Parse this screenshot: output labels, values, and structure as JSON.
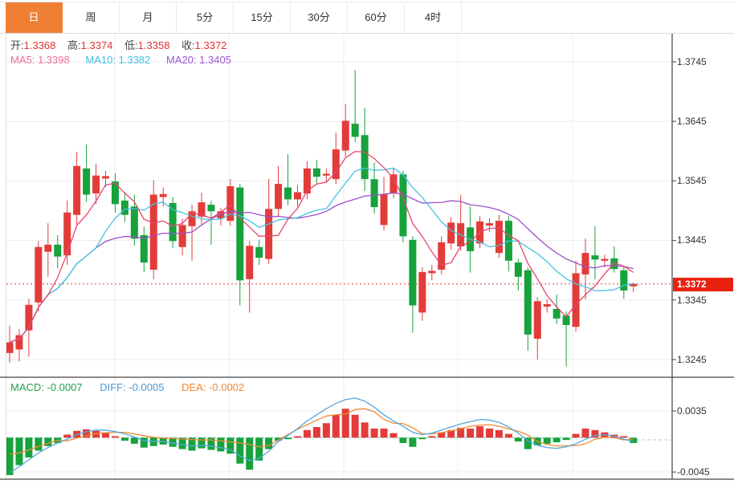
{
  "toolbar": {
    "tabs": [
      {
        "label": "日",
        "active": true
      },
      {
        "label": "周",
        "active": false
      },
      {
        "label": "月",
        "active": false
      },
      {
        "label": "5分",
        "active": false
      },
      {
        "label": "15分",
        "active": false
      },
      {
        "label": "30分",
        "active": false
      },
      {
        "label": "60分",
        "active": false
      },
      {
        "label": "4时",
        "active": false
      }
    ]
  },
  "info": {
    "open_label": "开:",
    "open": "1.3368",
    "high_label": "高:",
    "high": "1.3374",
    "low_label": "低:",
    "low": "1.3358",
    "close_label": "收:",
    "close": "1.3372",
    "ma5_label": "MA5:",
    "ma5": "1.3398",
    "ma10_label": "MA10:",
    "ma10": "1.3382",
    "ma20_label": "MA20:",
    "ma20": "1.3405"
  },
  "macd_info": {
    "macd_label": "MACD:",
    "macd": "-0.0007",
    "diff_label": "DIFF:",
    "diff": "-0.0005",
    "dea_label": "DEA:",
    "dea": "-0.0002"
  },
  "price_axis": {
    "ticks": [
      "1.3745",
      "1.3645",
      "1.3545",
      "1.3445",
      "1.3345",
      "1.3245"
    ],
    "current_tag": "1.3372"
  },
  "macd_axis": {
    "ticks": [
      "0.0035",
      "-0.0045"
    ]
  },
  "colors": {
    "up": "#e23c3a",
    "down": "#17a23c",
    "ma5": "#e74470",
    "ma10": "#45c2e2",
    "ma20": "#9c50c8",
    "diff_line": "#55a7dd",
    "dea_line": "#ef8a35",
    "zero_line": "#72c8be",
    "ext_line": "#a5cde8",
    "price_line": "#e23c3a",
    "tag_bg": "#e8220f",
    "tab_active_bg": "#ef8033",
    "grid": "#ececec",
    "axis": "#444444",
    "ohlc_value": "#e03232",
    "label_ma5": "#ef6f9a",
    "label_ma10": "#3fc0e0",
    "label_ma20": "#a055d5",
    "label_macd": "#23a24b",
    "label_diff": "#4b9ad9",
    "label_dea": "#f0862e"
  },
  "chart_data": {
    "type": "candlestick",
    "title": "",
    "legend": [
      "MA5",
      "MA10",
      "MA20",
      "MACD",
      "DIFF",
      "DEA"
    ],
    "up_means": "red = bullish close>=open, green = bearish",
    "price_ylim": [
      1.3215,
      1.3793
    ],
    "price_ticks": [
      1.3745,
      1.3645,
      1.3545,
      1.3445,
      1.3345,
      1.3245
    ],
    "current_price": 1.3372,
    "ma_periods": [
      5,
      10,
      20
    ],
    "ma_last_values": {
      "ma5": 1.3398,
      "ma10": 1.3382,
      "ma20": 1.3405
    },
    "candles_format": "[open, close, high, low]",
    "candles": [
      [
        1.3256,
        1.3274,
        1.3302,
        1.324
      ],
      [
        1.3262,
        1.3286,
        1.3296,
        1.3242
      ],
      [
        1.3294,
        1.3337,
        1.3347,
        1.325
      ],
      [
        1.3341,
        1.3434,
        1.3444,
        1.3326
      ],
      [
        1.3426,
        1.3438,
        1.3474,
        1.3384
      ],
      [
        1.3438,
        1.3418,
        1.3454,
        1.3398
      ],
      [
        1.342,
        1.3492,
        1.3512,
        1.3404
      ],
      [
        1.3488,
        1.357,
        1.3594,
        1.3472
      ],
      [
        1.3566,
        1.3522,
        1.3606,
        1.351
      ],
      [
        1.3524,
        1.3554,
        1.3574,
        1.3506
      ],
      [
        1.3549,
        1.3553,
        1.3562,
        1.3535
      ],
      [
        1.3544,
        1.3506,
        1.3558,
        1.3492
      ],
      [
        1.3512,
        1.3488,
        1.3526,
        1.3476
      ],
      [
        1.3502,
        1.3448,
        1.3522,
        1.3436
      ],
      [
        1.3454,
        1.3408,
        1.3468,
        1.3392
      ],
      [
        1.3396,
        1.3522,
        1.3546,
        1.338
      ],
      [
        1.3518,
        1.3523,
        1.3534,
        1.3502
      ],
      [
        1.3508,
        1.3444,
        1.3518,
        1.3432
      ],
      [
        1.3434,
        1.3471,
        1.3482,
        1.342
      ],
      [
        1.3469,
        1.3494,
        1.3505,
        1.3411
      ],
      [
        1.3485,
        1.3509,
        1.3525,
        1.3472
      ],
      [
        1.3505,
        1.3494,
        1.3512,
        1.3438
      ],
      [
        1.3482,
        1.3494,
        1.35,
        1.347
      ],
      [
        1.3478,
        1.3536,
        1.3548,
        1.347
      ],
      [
        1.3534,
        1.3378,
        1.354,
        1.3336
      ],
      [
        1.338,
        1.3436,
        1.3444,
        1.3324
      ],
      [
        1.3434,
        1.3416,
        1.3446,
        1.3404
      ],
      [
        1.3414,
        1.3498,
        1.3548,
        1.3406
      ],
      [
        1.3498,
        1.354,
        1.357,
        1.3486
      ],
      [
        1.3534,
        1.3514,
        1.359,
        1.3504
      ],
      [
        1.3514,
        1.3526,
        1.3538,
        1.3502
      ],
      [
        1.3524,
        1.3566,
        1.3578,
        1.3514
      ],
      [
        1.3566,
        1.3552,
        1.358,
        1.354
      ],
      [
        1.3554,
        1.3557,
        1.3566,
        1.3542
      ],
      [
        1.3548,
        1.3598,
        1.3626,
        1.354
      ],
      [
        1.3596,
        1.3646,
        1.3674,
        1.3586
      ],
      [
        1.3641,
        1.3619,
        1.3731,
        1.361
      ],
      [
        1.3622,
        1.3548,
        1.3668,
        1.3528
      ],
      [
        1.3548,
        1.3501,
        1.3576,
        1.349
      ],
      [
        1.3471,
        1.3523,
        1.3552,
        1.3462
      ],
      [
        1.3524,
        1.3556,
        1.3566,
        1.3516
      ],
      [
        1.3556,
        1.3452,
        1.3562,
        1.3442
      ],
      [
        1.3446,
        1.3336,
        1.3452,
        1.329
      ],
      [
        1.3324,
        1.3392,
        1.34,
        1.331
      ],
      [
        1.339,
        1.3394,
        1.3404,
        1.3378
      ],
      [
        1.3396,
        1.3442,
        1.3452,
        1.3388
      ],
      [
        1.344,
        1.3475,
        1.3484,
        1.343
      ],
      [
        1.3435,
        1.3474,
        1.3522,
        1.3428
      ],
      [
        1.3467,
        1.3427,
        1.3502,
        1.3391
      ],
      [
        1.344,
        1.3477,
        1.3486,
        1.3432
      ],
      [
        1.347,
        1.3474,
        1.3482,
        1.346
      ],
      [
        1.3424,
        1.3478,
        1.3488,
        1.3416
      ],
      [
        1.3478,
        1.3411,
        1.3486,
        1.3393
      ],
      [
        1.3408,
        1.3384,
        1.3414,
        1.3361
      ],
      [
        1.3395,
        1.3287,
        1.34,
        1.326
      ],
      [
        1.328,
        1.3343,
        1.335,
        1.3245
      ],
      [
        1.3334,
        1.3338,
        1.3346,
        1.3324
      ],
      [
        1.333,
        1.3314,
        1.3354,
        1.3305
      ],
      [
        1.3319,
        1.3303,
        1.3326,
        1.3233
      ],
      [
        1.33,
        1.339,
        1.3411,
        1.3292
      ],
      [
        1.3388,
        1.3424,
        1.3448,
        1.3346
      ],
      [
        1.342,
        1.3413,
        1.3469,
        1.338
      ],
      [
        1.3411,
        1.3414,
        1.3421,
        1.34
      ],
      [
        1.3415,
        1.3397,
        1.3435,
        1.3391
      ],
      [
        1.3395,
        1.3361,
        1.3402,
        1.3347
      ],
      [
        1.3368,
        1.3372,
        1.3374,
        1.3358
      ]
    ],
    "macd": {
      "ticks": [
        0.0035,
        -0.0045
      ],
      "last": {
        "macd": -0.0007,
        "diff": -0.0005,
        "dea": -0.0002
      },
      "dea_rule": "dea[i] = diff[i] - hist[i]/2",
      "hist": [
        -0.0049,
        -0.0036,
        -0.0026,
        -0.0017,
        -0.0011,
        -0.0007,
        0.0004,
        0.0009,
        0.0011,
        0.0009,
        0.0007,
        0.0002,
        -0.0004,
        -0.0008,
        -0.0013,
        -0.0011,
        -0.0009,
        -0.0012,
        -0.0015,
        -0.0017,
        -0.0014,
        -0.0016,
        -0.0018,
        -0.0021,
        -0.0034,
        -0.0042,
        -0.003,
        -0.0015,
        -0.0004,
        -0.0002,
        0.0002,
        0.001,
        0.0014,
        0.0019,
        0.003,
        0.0038,
        0.003,
        0.002,
        0.0012,
        0.0012,
        0.0006,
        -0.0007,
        -0.0012,
        -0.0002,
        0.0002,
        0.0007,
        0.001,
        0.0013,
        0.0012,
        0.0015,
        0.0012,
        0.001,
        0.0005,
        -0.0005,
        -0.0015,
        -0.001,
        -0.0008,
        -0.0006,
        -0.0003,
        0.0005,
        0.0012,
        0.001,
        0.0007,
        0.0004,
        0.0002,
        -0.0007
      ],
      "diff": [
        -0.0046,
        -0.0038,
        -0.0029,
        -0.002,
        -0.0013,
        -0.0007,
        -0.0002,
        0.0004,
        0.0008,
        0.001,
        0.001,
        0.0008,
        0.0005,
        0.0001,
        -0.0004,
        -0.0005,
        -0.0005,
        -0.0007,
        -0.0009,
        -0.0011,
        -0.001,
        -0.0011,
        -0.0013,
        -0.0016,
        -0.0024,
        -0.003,
        -0.0027,
        -0.0018,
        -0.0005,
        0.0003,
        0.0012,
        0.0022,
        0.003,
        0.0038,
        0.0045,
        0.005,
        0.0052,
        0.0048,
        0.004,
        0.003,
        0.0022,
        0.0015,
        0.0007,
        0.0004,
        0.0006,
        0.001,
        0.0014,
        0.0018,
        0.0021,
        0.0024,
        0.0023,
        0.002,
        0.0014,
        0.0006,
        -0.0004,
        -0.001,
        -0.0013,
        -0.0014,
        -0.0012,
        -0.0008,
        -0.0002,
        0.0003,
        0.0004,
        0.0002,
        -0.0002,
        -0.0005
      ]
    }
  }
}
